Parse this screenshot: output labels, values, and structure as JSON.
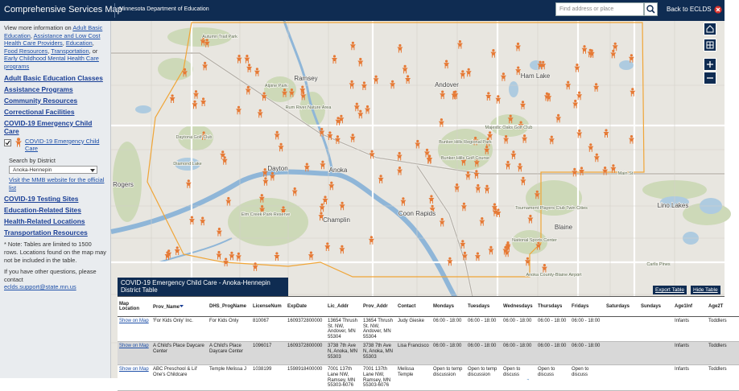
{
  "header": {
    "title": "Comprehensive Services Map",
    "subtitle": "Minnesota Department of Education",
    "search_placeholder": "Find address or place",
    "back_link": "Back to ECLDS"
  },
  "sidebar": {
    "intro": [
      {
        "text": "View more information on "
      },
      {
        "text": "Adult Basic Education",
        "link": true
      },
      {
        "text": ", "
      },
      {
        "text": "Assistance and Low Cost Health Care Providers",
        "link": true
      },
      {
        "text": ", "
      },
      {
        "text": "Education",
        "link": true
      },
      {
        "text": ", "
      },
      {
        "text": "Food Resources",
        "link": true
      },
      {
        "text": ", "
      },
      {
        "text": "Transportation",
        "link": true
      },
      {
        "text": ", or "
      },
      {
        "text": "Early Childhood Mental Health Care programs",
        "link": true
      }
    ],
    "sections_top": [
      "Adult Basic Education Classes",
      "Assistance Programs",
      "Community Resources",
      "Correctional Facilities",
      "COVID-19 Emergency Child Care"
    ],
    "layer": {
      "name": "COVID-19 Emergency Child Care",
      "checked": true,
      "search_label": "Search by District",
      "district": "Anoka-Hennepin",
      "official_link": "Visit the MMB website for the official list"
    },
    "sections_bottom": [
      "COVID-19 Testing Sites",
      "Education-Related Sites",
      "Health-Related Locations",
      "Transportation Resources"
    ],
    "note": "* Note: Tables are limited to 1500 rows. Locations found on the map may not be included in the table.",
    "contact_text": "If you have other questions, please contact",
    "contact_email": "eclds.support@state.mn.us"
  },
  "map": {
    "labels": [
      "Ramsey",
      "Andover",
      "Ham Lake",
      "Anoka",
      "Coon Rapids",
      "Champlin",
      "Dayton",
      "Blaine",
      "Elm Creek Park Reserve",
      "Bunker Hills Regional Park",
      "Majestic Oaks Golf Club",
      "Tournament Players Club Twin Cities",
      "National Sports Center",
      "Rum River Nature Area",
      "Anoka County-Blaine Airport",
      "Main St",
      "Rogers",
      "Lino Lakes",
      "Carlis Pines",
      "Bunker Hills Golf Course",
      "Alpine Park",
      "Diamond Lake",
      "Daytona Golf Club",
      "Autumn Trail Park"
    ]
  },
  "table": {
    "title": "COVID-19 Emergency Child Care - Anoka-Hennepin District Table",
    "buttons": [
      "Export Table",
      "Hide Table"
    ],
    "columns": [
      "Map Location",
      "Prov_Name",
      "DHS_ProgName",
      "LicenseNum",
      "ExpDate",
      "Lic_Addr",
      "Prov_Addr",
      "Contact",
      "Mondays",
      "Tuesdays",
      "Wednesdays",
      "Thursdays",
      "Fridays",
      "Saturdays",
      "Sundays",
      "Age1Inf",
      "Age2T"
    ],
    "rows": [
      [
        "Show on Map",
        "'For Kids Only' Inc.",
        "For Kids Only",
        810067,
        1609372800000,
        "13654 Thrush St. NW, Andover, MN 55304",
        "13654 Thrush St. NW, Andover, MN 55304",
        "Judy Gieske",
        "06:00 - 18:00",
        "06:00 - 18:00",
        "06:00 - 18:00",
        "06:00 - 18:00",
        "06:00 - 18:00",
        null,
        null,
        "Infants",
        "Toddlers"
      ],
      [
        "Show on Map",
        "A Child's Place Daycare Center",
        "A Child's Place Daycare Center",
        1096017,
        1609372800000,
        "3738 7th Ave N, Anoka, MN 55303",
        "3738 7th Ave N, Anoka, MN 55303",
        "Lisa Francisco",
        "06:00 - 18:00",
        "06:00 - 18:00",
        "06:00 - 18:00",
        "06:00 - 18:00",
        "06:00 - 18:00",
        null,
        null,
        "Infants",
        "Toddlers"
      ],
      [
        "Show on Map",
        "ABC Preschool & Lil' One's Childcare",
        "Temple Melissa J",
        1038199,
        1598918400000,
        "7001 137th Lane NW, Ramsey, MN 55303-6076",
        "7001 137th Lane NW, Ramsey, MN 55303-6076",
        "Melissa Temple",
        "Open to temp discussion",
        "Open to temp discussion",
        "Open to discuss",
        "Open to discuss",
        "Open to discuss",
        null,
        null,
        "Infants",
        "Toddlers"
      ]
    ]
  }
}
